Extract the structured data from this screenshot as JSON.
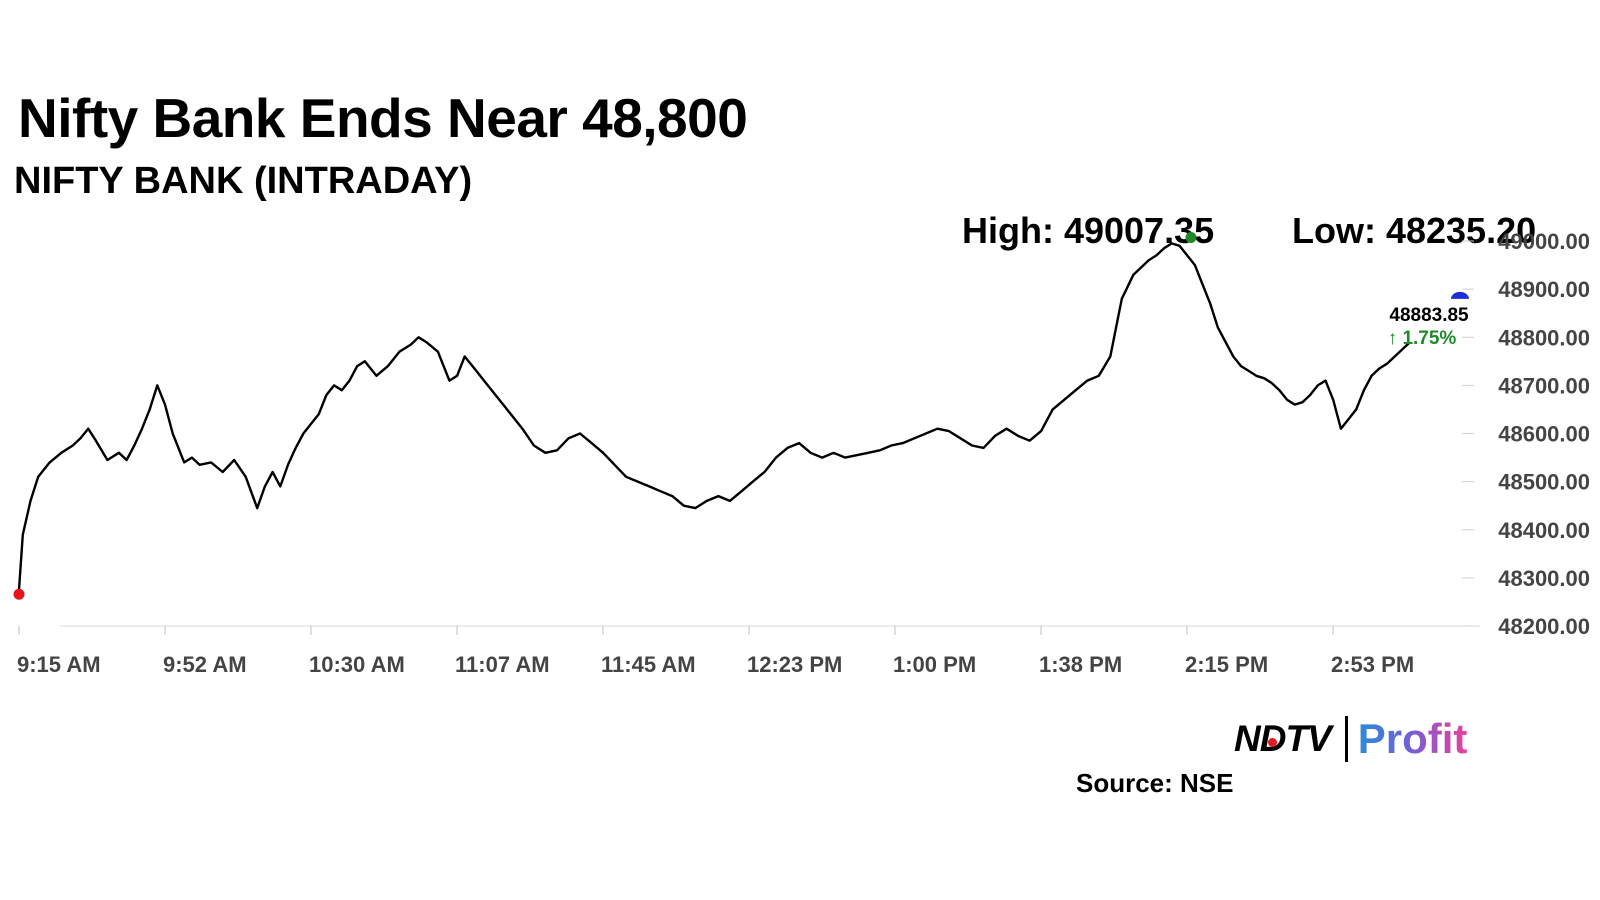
{
  "header": {
    "title": "Nifty Bank Ends Near 48,800",
    "subtitle": "NIFTY BANK (INTRADAY)",
    "high_label": "High: 49007.35",
    "low_label": "Low: 48235.20"
  },
  "last": {
    "price": "48883.85",
    "change": "↑ 1.75%"
  },
  "branding": {
    "ndtv": "NDTV",
    "profit": "Profit",
    "source": "Source: NSE"
  },
  "colors": {
    "line": "#000000",
    "open_marker": "#e5141b",
    "high_marker": "#1f8a2a",
    "last_marker": "#1d2fd6",
    "change_text": "#1f8a2a",
    "axis_text": "#444444"
  },
  "chart_data": {
    "type": "line",
    "title": "NIFTY BANK (INTRADAY)",
    "y_axis_side": "right",
    "ylim": [
      48200,
      49000
    ],
    "yticks": [
      48200,
      48300,
      48400,
      48500,
      48600,
      48700,
      48800,
      48900,
      49000
    ],
    "ytick_labels": [
      "48200.00",
      "48300.00",
      "48400.00",
      "48500.00",
      "48600.00",
      "48700.00",
      "48800.00",
      "48900.00",
      "49000.00"
    ],
    "xticks": [
      "9:15 AM",
      "9:52 AM",
      "10:30 AM",
      "11:07 AM",
      "11:45 AM",
      "12:23 PM",
      "1:00 PM",
      "1:38 PM",
      "2:15 PM",
      "2:53 PM"
    ],
    "x_unit": "minutes after 9:15 AM",
    "xlim": [
      0,
      375
    ],
    "series": [
      {
        "x": [
          0,
          1,
          3,
          5,
          8,
          11,
          14,
          16,
          18,
          20,
          23,
          26,
          28,
          30,
          32,
          34,
          36,
          38,
          40,
          43,
          45,
          47,
          50,
          53,
          56,
          59,
          62,
          64,
          66,
          68,
          70,
          72,
          74,
          76,
          78,
          80,
          82,
          84,
          86,
          88,
          90,
          93,
          96,
          99,
          102,
          104,
          106,
          109,
          112,
          114,
          116,
          119,
          122,
          125,
          128,
          131,
          134,
          137,
          140,
          143,
          146,
          149,
          152,
          155,
          158,
          161,
          164,
          167,
          170,
          173,
          176,
          179,
          182,
          185,
          188,
          191,
          194,
          197,
          200,
          203,
          206,
          209,
          212,
          215,
          218,
          221,
          224,
          227,
          230,
          233,
          236,
          239,
          242,
          245,
          248,
          251,
          254,
          257,
          260,
          263,
          266,
          269,
          272,
          275,
          278,
          281,
          284,
          287,
          290,
          292,
          294,
          296,
          298,
          300,
          302,
          304,
          306,
          308,
          310,
          312,
          314,
          316,
          318,
          320,
          322,
          324,
          326,
          328,
          330,
          332,
          334,
          336,
          338,
          340,
          342,
          344,
          346,
          348,
          350,
          352,
          354,
          356,
          358,
          360,
          362
        ],
        "y": [
          48275,
          48390,
          48460,
          48510,
          48540,
          48560,
          48575,
          48590,
          48610,
          48585,
          48545,
          48560,
          48545,
          48575,
          48610,
          48650,
          48700,
          48660,
          48600,
          48540,
          48550,
          48535,
          48540,
          48520,
          48545,
          48510,
          48445,
          48490,
          48520,
          48490,
          48535,
          48570,
          48600,
          48620,
          48640,
          48680,
          48700,
          48690,
          48710,
          48740,
          48750,
          48720,
          48740,
          48770,
          48785,
          48800,
          48790,
          48770,
          48710,
          48720,
          48760,
          48730,
          48700,
          48670,
          48640,
          48610,
          48575,
          48560,
          48565,
          48590,
          48600,
          48580,
          48560,
          48535,
          48510,
          48500,
          48490,
          48480,
          48470,
          48450,
          48445,
          48460,
          48470,
          48460,
          48480,
          48500,
          48520,
          48550,
          48570,
          48580,
          48560,
          48550,
          48560,
          48550,
          48555,
          48560,
          48565,
          48575,
          48580,
          48590,
          48600,
          48610,
          48605,
          48590,
          48575,
          48570,
          48595,
          48610,
          48595,
          48585,
          48605,
          48650,
          48670,
          48690,
          48710,
          48720,
          48760,
          48880,
          48930,
          48945,
          48960,
          48970,
          48985,
          48995,
          48990,
          48970,
          48950,
          48910,
          48870,
          48820,
          48790,
          48760,
          48740,
          48730,
          48720,
          48715,
          48705,
          48690,
          48670,
          48660,
          48665,
          48680,
          48700,
          48710,
          48670,
          48610,
          48630,
          48650,
          48690,
          48720,
          48735,
          48745,
          48760,
          48775,
          48790
        ]
      }
    ],
    "markers": {
      "open": {
        "x": 0,
        "y": 48266
      },
      "high": {
        "x": 305,
        "y": 49007.35
      },
      "last": {
        "x": 375,
        "y": 48883.85
      }
    }
  }
}
